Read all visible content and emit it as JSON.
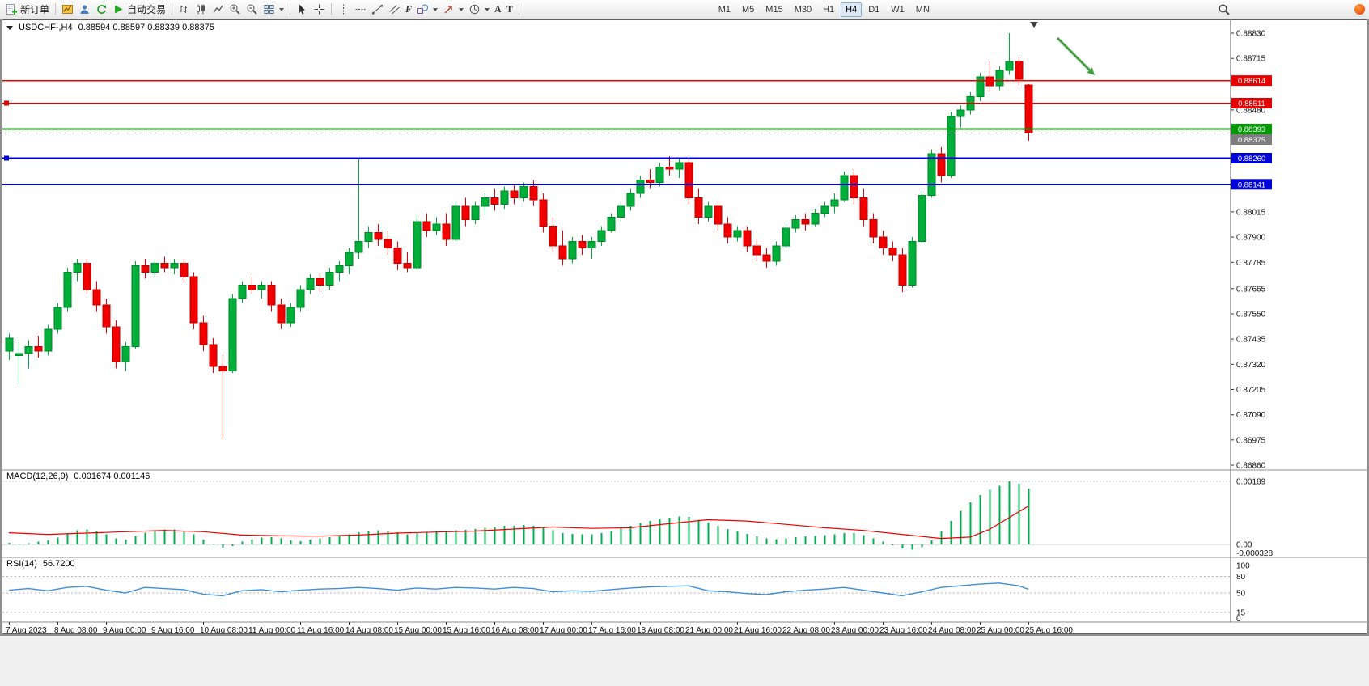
{
  "toolbar": {
    "new_order": "新订单",
    "autotrading": "自动交易",
    "timeframes": [
      "M1",
      "M5",
      "M15",
      "M30",
      "H1",
      "H4",
      "D1",
      "W1",
      "MN"
    ],
    "active_timeframe": "H4",
    "icons": {
      "text_tool": "A",
      "label_tool": "T",
      "fibonacci_tool": "F"
    }
  },
  "chart_data": {
    "type": "candlestick",
    "symbol_title": "USDCHF-,H4",
    "ohlc_text": "0.88594 0.88597 0.88339 0.88375",
    "current": {
      "open": 0.88594,
      "high": 0.88597,
      "low": 0.88339,
      "close": 0.88375
    },
    "up_color": "#00ae3a",
    "up_border": "#008527",
    "down_color": "#f20000",
    "down_border": "#bb0000",
    "arrow_color": "#3fa13f",
    "y_axis": {
      "min": 0.8686,
      "max": 0.8883,
      "ticks": [
        0.8883,
        0.88715,
        0.8848,
        0.88015,
        0.879,
        0.87785,
        0.87665,
        0.8755,
        0.87435,
        0.8732,
        0.87205,
        0.8709,
        0.86975,
        0.8686
      ]
    },
    "x_axis": {
      "candles_per_label": 5,
      "labels": [
        "7 Aug 2023",
        "8 Aug 08:00",
        "9 Aug 00:00",
        "9 Aug 16:00",
        "10 Aug 08:00",
        "11 Aug 00:00",
        "11 Aug 16:00",
        "14 Aug 08:00",
        "15 Aug 00:00",
        "15 Aug 16:00",
        "16 Aug 08:00",
        "17 Aug 00:00",
        "17 Aug 16:00",
        "18 Aug 08:00",
        "21 Aug 00:00",
        "21 Aug 16:00",
        "22 Aug 08:00",
        "23 Aug 00:00",
        "23 Aug 16:00",
        "24 Aug 08:00",
        "25 Aug 00:00",
        "25 Aug 16:00"
      ]
    },
    "hlines": [
      {
        "price": 0.88614,
        "color": "#e60000",
        "label": "0.88614",
        "width": 1.5
      },
      {
        "price": 0.88511,
        "color": "#e60000",
        "label": "0.88511",
        "width": 1.5,
        "handle": true
      },
      {
        "price": 0.88393,
        "color": "#009900",
        "label": "0.88393",
        "width": 2
      },
      {
        "price": 0.8826,
        "color": "#0000d9",
        "label": "0.88260",
        "width": 2,
        "handle": true
      },
      {
        "price": 0.88141,
        "color": "#0000d9",
        "label": "0.88141",
        "width": 2
      }
    ],
    "bid_line": {
      "price": 0.88375,
      "label": "0.88375",
      "color": "#9a9a9a",
      "tag_color": "#7d7d7d"
    },
    "candles": [
      [
        0.8738,
        0.8746,
        0.8734,
        0.8744
      ],
      [
        0.8736,
        0.8742,
        0.8723,
        0.8737
      ],
      [
        0.8737,
        0.8743,
        0.873,
        0.874
      ],
      [
        0.874,
        0.8745,
        0.8735,
        0.8738
      ],
      [
        0.8738,
        0.875,
        0.8736,
        0.8748
      ],
      [
        0.8748,
        0.876,
        0.8746,
        0.8758
      ],
      [
        0.8758,
        0.8776,
        0.8756,
        0.8774
      ],
      [
        0.8774,
        0.878,
        0.877,
        0.8778
      ],
      [
        0.8778,
        0.878,
        0.8764,
        0.8766
      ],
      [
        0.8766,
        0.877,
        0.8756,
        0.8759
      ],
      [
        0.8759,
        0.8762,
        0.8746,
        0.8749
      ],
      [
        0.8749,
        0.8752,
        0.873,
        0.8733
      ],
      [
        0.8733,
        0.8742,
        0.8729,
        0.874
      ],
      [
        0.874,
        0.8779,
        0.8739,
        0.8777
      ],
      [
        0.8777,
        0.878,
        0.8771,
        0.8774
      ],
      [
        0.8774,
        0.878,
        0.8772,
        0.8778
      ],
      [
        0.8778,
        0.8781,
        0.8774,
        0.8776
      ],
      [
        0.8776,
        0.878,
        0.8773,
        0.8778
      ],
      [
        0.8778,
        0.878,
        0.8769,
        0.8772
      ],
      [
        0.8772,
        0.8774,
        0.8748,
        0.8751
      ],
      [
        0.8751,
        0.8754,
        0.8738,
        0.8741
      ],
      [
        0.8741,
        0.8744,
        0.8728,
        0.8731
      ],
      [
        0.8731,
        0.8736,
        0.8698,
        0.8729
      ],
      [
        0.8729,
        0.8764,
        0.8728,
        0.8762
      ],
      [
        0.8762,
        0.877,
        0.876,
        0.8768
      ],
      [
        0.8768,
        0.8772,
        0.8764,
        0.8766
      ],
      [
        0.8766,
        0.877,
        0.8762,
        0.8768
      ],
      [
        0.8768,
        0.877,
        0.8756,
        0.8759
      ],
      [
        0.8759,
        0.8762,
        0.8748,
        0.8751
      ],
      [
        0.8751,
        0.876,
        0.8749,
        0.8758
      ],
      [
        0.8758,
        0.8768,
        0.8756,
        0.8766
      ],
      [
        0.8766,
        0.8773,
        0.8764,
        0.8771
      ],
      [
        0.8771,
        0.8774,
        0.8765,
        0.8768
      ],
      [
        0.8768,
        0.8776,
        0.8766,
        0.8774
      ],
      [
        0.8774,
        0.8779,
        0.877,
        0.8777
      ],
      [
        0.8777,
        0.8785,
        0.8773,
        0.8783
      ],
      [
        0.8783,
        0.88255,
        0.878,
        0.8788
      ],
      [
        0.8788,
        0.8795,
        0.8785,
        0.8792
      ],
      [
        0.8792,
        0.8796,
        0.8786,
        0.8789
      ],
      [
        0.8789,
        0.8793,
        0.8782,
        0.8785
      ],
      [
        0.8785,
        0.8788,
        0.8775,
        0.8778
      ],
      [
        0.8778,
        0.8783,
        0.8774,
        0.8776
      ],
      [
        0.8776,
        0.88,
        0.8775,
        0.8797
      ],
      [
        0.8797,
        0.8801,
        0.879,
        0.8793
      ],
      [
        0.8793,
        0.8799,
        0.8791,
        0.8796
      ],
      [
        0.8796,
        0.8801,
        0.8786,
        0.8789
      ],
      [
        0.8789,
        0.8806,
        0.8788,
        0.8804
      ],
      [
        0.8804,
        0.8808,
        0.8795,
        0.8798
      ],
      [
        0.8798,
        0.8806,
        0.8796,
        0.8804
      ],
      [
        0.8804,
        0.881,
        0.88,
        0.8808
      ],
      [
        0.8808,
        0.8812,
        0.8802,
        0.8805
      ],
      [
        0.8805,
        0.8813,
        0.8803,
        0.8811
      ],
      [
        0.8811,
        0.8814,
        0.8805,
        0.8808
      ],
      [
        0.8808,
        0.8815,
        0.8806,
        0.8813
      ],
      [
        0.8813,
        0.8816,
        0.8804,
        0.8807
      ],
      [
        0.8807,
        0.881,
        0.8792,
        0.8795
      ],
      [
        0.8795,
        0.8799,
        0.8783,
        0.8786
      ],
      [
        0.8786,
        0.8793,
        0.8777,
        0.878
      ],
      [
        0.878,
        0.879,
        0.8778,
        0.8788
      ],
      [
        0.8788,
        0.8791,
        0.8782,
        0.8785
      ],
      [
        0.8785,
        0.879,
        0.878,
        0.8788
      ],
      [
        0.8788,
        0.8795,
        0.8786,
        0.8793
      ],
      [
        0.8793,
        0.8801,
        0.8792,
        0.8799
      ],
      [
        0.8799,
        0.8806,
        0.8797,
        0.8804
      ],
      [
        0.8804,
        0.8812,
        0.8802,
        0.881
      ],
      [
        0.881,
        0.8818,
        0.8808,
        0.8816
      ],
      [
        0.8816,
        0.8821,
        0.8812,
        0.8815
      ],
      [
        0.8815,
        0.8824,
        0.8813,
        0.8822
      ],
      [
        0.8822,
        0.8827,
        0.8818,
        0.8821
      ],
      [
        0.8821,
        0.8826,
        0.8817,
        0.8824
      ],
      [
        0.8824,
        0.8826,
        0.8805,
        0.8808
      ],
      [
        0.8808,
        0.8812,
        0.8796,
        0.8799
      ],
      [
        0.8799,
        0.8806,
        0.8797,
        0.8804
      ],
      [
        0.8804,
        0.8806,
        0.8793,
        0.8796
      ],
      [
        0.8796,
        0.8799,
        0.8787,
        0.879
      ],
      [
        0.879,
        0.8795,
        0.8788,
        0.8793
      ],
      [
        0.8793,
        0.8795,
        0.8783,
        0.8786
      ],
      [
        0.8786,
        0.8789,
        0.8779,
        0.8782
      ],
      [
        0.8782,
        0.8785,
        0.8776,
        0.8779
      ],
      [
        0.8779,
        0.8788,
        0.8777,
        0.8786
      ],
      [
        0.8786,
        0.8796,
        0.8785,
        0.8794
      ],
      [
        0.8794,
        0.88,
        0.8792,
        0.8798
      ],
      [
        0.8798,
        0.8801,
        0.8793,
        0.8796
      ],
      [
        0.8796,
        0.8803,
        0.8795,
        0.8801
      ],
      [
        0.8801,
        0.8806,
        0.8799,
        0.8804
      ],
      [
        0.8804,
        0.881,
        0.8801,
        0.8807
      ],
      [
        0.8807,
        0.882,
        0.8806,
        0.8818
      ],
      [
        0.8818,
        0.8821,
        0.8805,
        0.8808
      ],
      [
        0.8808,
        0.8812,
        0.8795,
        0.8798
      ],
      [
        0.8798,
        0.8801,
        0.8787,
        0.879
      ],
      [
        0.879,
        0.8793,
        0.8782,
        0.8785
      ],
      [
        0.8785,
        0.8788,
        0.8779,
        0.8782
      ],
      [
        0.8782,
        0.8785,
        0.8765,
        0.8768
      ],
      [
        0.8768,
        0.879,
        0.8767,
        0.8788
      ],
      [
        0.8788,
        0.8811,
        0.8787,
        0.8809
      ],
      [
        0.8809,
        0.883,
        0.8808,
        0.8828
      ],
      [
        0.8828,
        0.8831,
        0.8815,
        0.8818
      ],
      [
        0.8818,
        0.8847,
        0.8817,
        0.8845
      ],
      [
        0.8845,
        0.885,
        0.884,
        0.8848
      ],
      [
        0.8848,
        0.8856,
        0.8846,
        0.8854
      ],
      [
        0.8854,
        0.8865,
        0.8852,
        0.8863
      ],
      [
        0.8863,
        0.887,
        0.8856,
        0.8859
      ],
      [
        0.8859,
        0.8868,
        0.8857,
        0.8866
      ],
      [
        0.8866,
        0.8883,
        0.8864,
        0.887
      ],
      [
        0.887,
        0.8872,
        0.8859,
        0.8862
      ],
      [
        0.88594,
        0.88597,
        0.88339,
        0.88375
      ]
    ],
    "macd": {
      "title": "MACD(12,26,9)",
      "value_text": "0.001674 0.001146",
      "hist_color": "#00b050",
      "signal_color": "#ee0000",
      "axis": [
        {
          "label": "0.00189",
          "value": 0.00189
        },
        {
          "label": "0.00",
          "value": 0
        },
        {
          "label": "-0.000328",
          "value": -0.000328
        }
      ],
      "hist": [
        5e-05,
        2e-05,
        4e-05,
        8e-05,
        0.00012,
        0.0002,
        0.00032,
        0.00042,
        0.00045,
        0.0004,
        0.0003,
        0.00018,
        0.00015,
        0.00025,
        0.00035,
        0.00042,
        0.00045,
        0.00045,
        0.0004,
        0.0003,
        0.00015,
        2e-05,
        -0.0001,
        -5e-05,
        8e-05,
        0.00015,
        0.0002,
        0.00022,
        0.00018,
        0.00012,
        0.0001,
        0.00014,
        0.00018,
        0.00022,
        0.00026,
        0.0003,
        0.00036,
        0.0004,
        0.00042,
        0.0004,
        0.00036,
        0.0003,
        0.00034,
        0.00038,
        0.0004,
        0.00038,
        0.00042,
        0.00044,
        0.00046,
        0.0005,
        0.00052,
        0.00056,
        0.00056,
        0.00058,
        0.00056,
        0.0005,
        0.00042,
        0.00034,
        0.00032,
        0.0003,
        0.0003,
        0.00034,
        0.0004,
        0.00048,
        0.00056,
        0.00064,
        0.0007,
        0.00076,
        0.0008,
        0.00084,
        0.00082,
        0.00074,
        0.00066,
        0.00056,
        0.00046,
        0.0004,
        0.00032,
        0.00024,
        0.00018,
        0.00016,
        0.00018,
        0.00022,
        0.00024,
        0.00026,
        0.00028,
        0.0003,
        0.00034,
        0.00034,
        0.00028,
        0.00018,
        8e-05,
        -2e-05,
        -0.00012,
        -0.00016,
        -8e-05,
        0.00012,
        0.0004,
        0.0007,
        0.001,
        0.00126,
        0.00148,
        0.00164,
        0.00176,
        0.00189,
        0.00182,
        0.001674
      ],
      "signal": [
        [
          0,
          0.00035
        ],
        [
          4,
          0.0003
        ],
        [
          8,
          0.00034
        ],
        [
          12,
          0.00038
        ],
        [
          16,
          0.00042
        ],
        [
          20,
          0.00038
        ],
        [
          24,
          0.00028
        ],
        [
          28,
          0.00026
        ],
        [
          32,
          0.00025
        ],
        [
          36,
          0.00028
        ],
        [
          40,
          0.00034
        ],
        [
          44,
          0.00037
        ],
        [
          48,
          0.0004
        ],
        [
          52,
          0.00046
        ],
        [
          56,
          0.00052
        ],
        [
          60,
          0.00048
        ],
        [
          64,
          0.0005
        ],
        [
          68,
          0.00062
        ],
        [
          72,
          0.00074
        ],
        [
          76,
          0.0007
        ],
        [
          80,
          0.0006
        ],
        [
          84,
          0.0005
        ],
        [
          88,
          0.00042
        ],
        [
          92,
          0.0003
        ],
        [
          96,
          0.00018
        ],
        [
          99,
          0.00022
        ],
        [
          101,
          0.00045
        ],
        [
          103,
          0.0008
        ],
        [
          105,
          0.001146
        ]
      ]
    },
    "rsi": {
      "title": "RSI(14)",
      "value_text": "56.7200",
      "color": "#3f8fd6",
      "levels": [
        80,
        50,
        15
      ],
      "axis": [
        {
          "label": "100",
          "value": 100
        },
        {
          "label": "80",
          "value": 80
        },
        {
          "label": "50",
          "value": 50
        },
        {
          "label": "15",
          "value": 15
        },
        {
          "label": "0",
          "value": 0
        }
      ],
      "points": [
        [
          0,
          55
        ],
        [
          2,
          58
        ],
        [
          4,
          54
        ],
        [
          6,
          60
        ],
        [
          8,
          62
        ],
        [
          10,
          55
        ],
        [
          12,
          50
        ],
        [
          14,
          60
        ],
        [
          16,
          58
        ],
        [
          18,
          56
        ],
        [
          20,
          48
        ],
        [
          22,
          45
        ],
        [
          24,
          54
        ],
        [
          26,
          56
        ],
        [
          28,
          52
        ],
        [
          30,
          55
        ],
        [
          32,
          57
        ],
        [
          34,
          58
        ],
        [
          36,
          60
        ],
        [
          38,
          58
        ],
        [
          40,
          55
        ],
        [
          42,
          59
        ],
        [
          44,
          57
        ],
        [
          46,
          60
        ],
        [
          48,
          59
        ],
        [
          50,
          57
        ],
        [
          52,
          60
        ],
        [
          54,
          58
        ],
        [
          56,
          52
        ],
        [
          58,
          54
        ],
        [
          60,
          53
        ],
        [
          62,
          56
        ],
        [
          64,
          59
        ],
        [
          66,
          61
        ],
        [
          68,
          62
        ],
        [
          70,
          63
        ],
        [
          72,
          54
        ],
        [
          74,
          52
        ],
        [
          76,
          49
        ],
        [
          78,
          47
        ],
        [
          80,
          52
        ],
        [
          82,
          55
        ],
        [
          84,
          57
        ],
        [
          86,
          60
        ],
        [
          88,
          55
        ],
        [
          90,
          50
        ],
        [
          92,
          45
        ],
        [
          94,
          52
        ],
        [
          96,
          60
        ],
        [
          98,
          63
        ],
        [
          100,
          66
        ],
        [
          102,
          68
        ],
        [
          104,
          63
        ],
        [
          105,
          56.72
        ]
      ]
    }
  }
}
